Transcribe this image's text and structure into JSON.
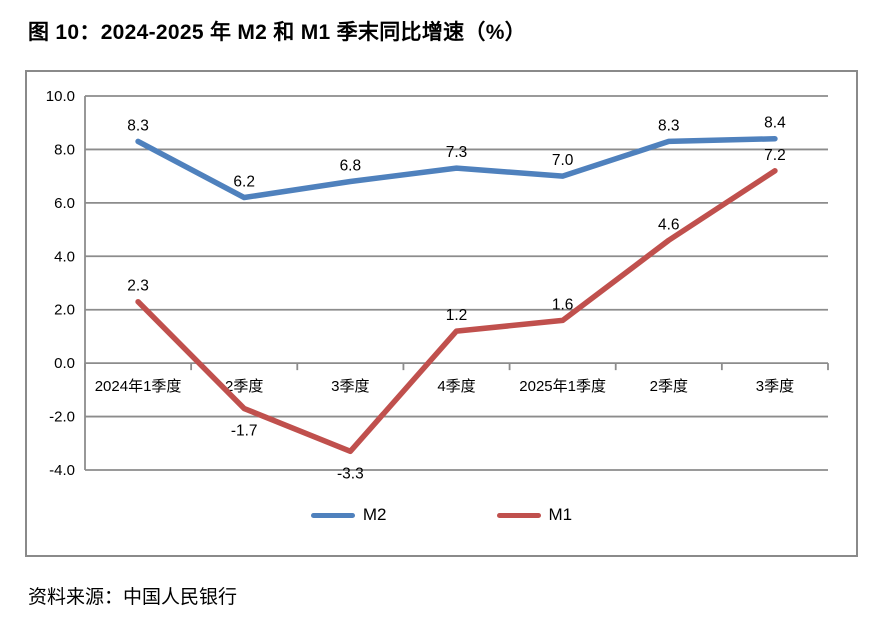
{
  "title": "图 10：2024-2025 年 M2 和 M1 季末同比增速（%）",
  "source": "资料来源：中国人民银行",
  "chart_data": {
    "type": "line",
    "categories": [
      "2024年1季度",
      "2季度",
      "3季度",
      "4季度",
      "2025年1季度",
      "2季度",
      "3季度"
    ],
    "series": [
      {
        "name": "M2",
        "color": "#4F81BD",
        "values": [
          8.3,
          6.2,
          6.8,
          7.3,
          7.0,
          8.3,
          8.4
        ]
      },
      {
        "name": "M1",
        "color": "#C0504D",
        "values": [
          2.3,
          -1.7,
          -3.3,
          1.2,
          1.6,
          4.6,
          7.2
        ]
      }
    ],
    "ylim": [
      -4.0,
      10.0
    ],
    "ytick_step": 2.0,
    "ytick_labels": [
      "10.0",
      "8.0",
      "6.0",
      "4.0",
      "2.0",
      "0.0",
      "-2.0",
      "-4.0"
    ],
    "grid": true,
    "gridline_color": "#8c8c8c",
    "data_labels": true,
    "legend_position": "bottom",
    "xlabel": "",
    "ylabel": ""
  }
}
